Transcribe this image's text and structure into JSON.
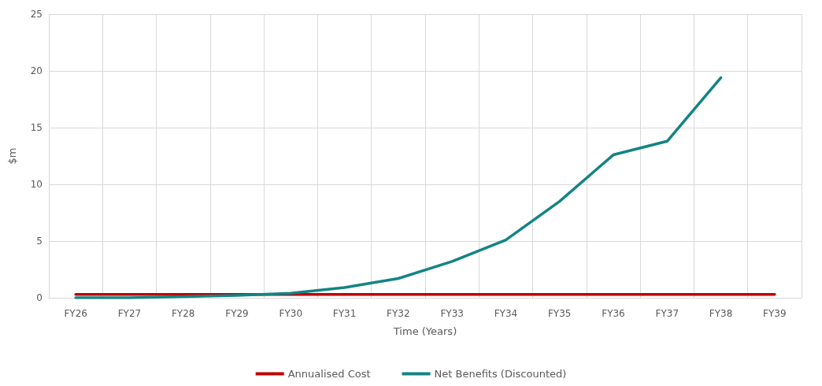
{
  "chart_data": {
    "type": "line",
    "xlabel": "Time (Years)",
    "ylabel": "$m",
    "categories": [
      "FY26",
      "FY27",
      "FY28",
      "FY29",
      "FY30",
      "FY31",
      "FY32",
      "FY33",
      "FY34",
      "FY35",
      "FY36",
      "FY37",
      "FY38",
      "FY39"
    ],
    "series": [
      {
        "name": "Annualised Cost",
        "color": "#c00000",
        "values": [
          0.3,
          0.3,
          0.3,
          0.3,
          0.3,
          0.3,
          0.3,
          0.3,
          0.3,
          0.3,
          0.3,
          0.3,
          0.3,
          0.3
        ]
      },
      {
        "name": "Net Benefits (Discounted)",
        "color": "#138484",
        "values": [
          0,
          0,
          0.1,
          0.2,
          0.4,
          0.9,
          1.7,
          3.2,
          5.1,
          8.5,
          12.6,
          13.8,
          19.4,
          null
        ]
      }
    ],
    "ylim": [
      0,
      25
    ],
    "yticks": [
      0,
      5,
      10,
      15,
      20,
      25
    ],
    "grid": true,
    "legend": "bottom",
    "marker": "none",
    "line_style": "solid"
  }
}
